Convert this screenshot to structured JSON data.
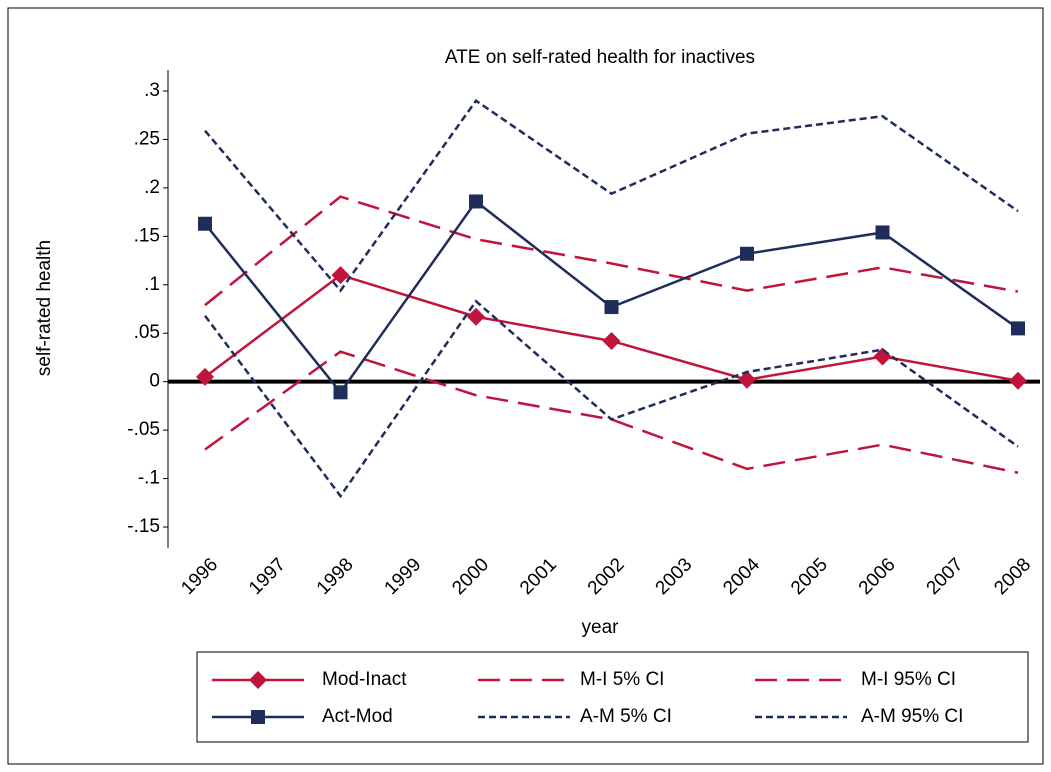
{
  "chart_data": {
    "type": "line",
    "title": "ATE on self-rated health for inactives",
    "x_label": "year",
    "y_label": "self-rated health",
    "x": [
      1996,
      1998,
      2000,
      2002,
      2004,
      2006,
      2008
    ],
    "series": [
      {
        "name": "Mod-Inact",
        "color": "#c0143c",
        "dash": "solid",
        "marker": "diamond",
        "values": [
          0.005,
          0.11,
          0.067,
          0.042,
          0.002,
          0.026,
          0.001
        ]
      },
      {
        "name": "M-I 5% CI",
        "color": "#c0143c",
        "dash": "long",
        "marker": "none",
        "values": [
          -0.07,
          0.031,
          -0.014,
          -0.039,
          -0.09,
          -0.065,
          -0.094
        ]
      },
      {
        "name": "M-I 95% CI",
        "color": "#c0143c",
        "dash": "long",
        "marker": "none",
        "values": [
          0.079,
          0.191,
          0.147,
          0.122,
          0.094,
          0.118,
          0.093
        ]
      },
      {
        "name": "Act-Mod",
        "color": "#1f2d5a",
        "dash": "solid",
        "marker": "square",
        "values": [
          0.163,
          -0.011,
          0.186,
          0.077,
          0.132,
          0.154,
          0.055
        ]
      },
      {
        "name": "A-M 5% CI",
        "color": "#1f2d5a",
        "dash": "short",
        "marker": "none",
        "values": [
          0.068,
          -0.118,
          0.083,
          -0.039,
          0.01,
          0.033,
          -0.067
        ]
      },
      {
        "name": "A-M 95% CI",
        "color": "#1f2d5a",
        "dash": "short",
        "marker": "none",
        "values": [
          0.259,
          0.094,
          0.29,
          0.194,
          0.256,
          0.274,
          0.176
        ]
      }
    ],
    "xlim": [
      1996,
      2008
    ],
    "xticks": [
      1996,
      1997,
      1998,
      1999,
      2000,
      2001,
      2002,
      2003,
      2004,
      2005,
      2006,
      2007,
      2008
    ],
    "ylim": [
      -0.15,
      0.3
    ],
    "yticks": [
      {
        "value": -0.15,
        "label": "-.15"
      },
      {
        "value": -0.1,
        "label": "-.1"
      },
      {
        "value": -0.05,
        "label": "-.05"
      },
      0,
      {
        "value": 0.05,
        "label": ".05"
      },
      {
        "value": 0.1,
        "label": ".1"
      },
      {
        "value": 0.15,
        "label": ".15"
      },
      {
        "value": 0.2,
        "label": ".2"
      },
      {
        "value": 0.25,
        "label": ".25"
      },
      {
        "value": 0.3,
        "label": ".3"
      }
    ],
    "reference_line": 0,
    "grid": false,
    "legend": "bottom"
  }
}
